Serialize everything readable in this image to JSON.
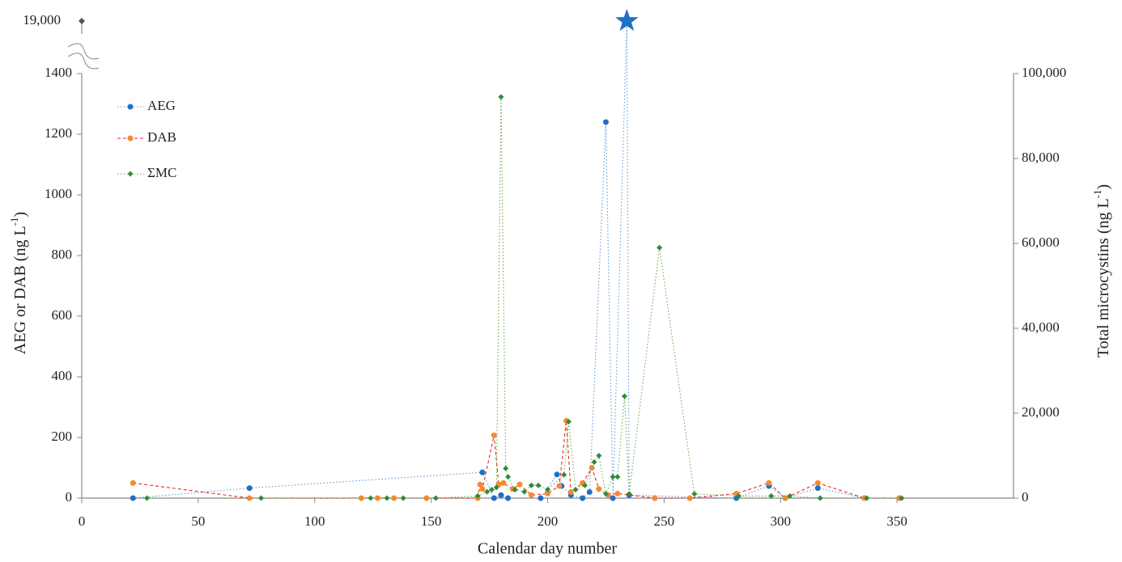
{
  "chart_data": {
    "type": "line",
    "xlabel": "Calendar day number",
    "ylabel": [
      "AEG or DAB (ng L",
      "-1",
      ")"
    ],
    "y2label": [
      "Total microcystins (ng L",
      "-1",
      ")"
    ],
    "xlim": [
      0,
      400
    ],
    "xticks": [
      0,
      50,
      100,
      150,
      200,
      250,
      300,
      350
    ],
    "ylim": [
      0,
      1400
    ],
    "yticks": [
      0,
      200,
      400,
      600,
      800,
      1000,
      1200,
      1400
    ],
    "ybreak_tick": {
      "value": 19000,
      "label": "19,000"
    },
    "y2lim": [
      0,
      100000
    ],
    "y2ticks": [
      0,
      {
        "value": 20000,
        "label": "20,000"
      },
      {
        "value": 40000,
        "label": "40,000"
      },
      {
        "value": 60000,
        "label": "60,000"
      },
      {
        "value": 80000,
        "label": "80,000"
      },
      {
        "value": 100000,
        "label": "100,000"
      }
    ],
    "grid": false,
    "legend": "top-left",
    "series": [
      {
        "name": "AEG",
        "color": "#5b9bd5",
        "marker_color": "#1f6fc5",
        "marker": "circle",
        "dash": "dotted",
        "x": [
          22,
          72,
          172,
          177,
          180,
          183,
          197,
          204,
          206,
          210,
          215,
          218,
          225,
          228,
          234,
          235,
          281,
          295,
          302,
          316,
          336,
          351
        ],
        "values": [
          0,
          33,
          85,
          0,
          10,
          0,
          0,
          78,
          40,
          10,
          0,
          20,
          1240,
          0,
          19000,
          10,
          0,
          40,
          0,
          33,
          0,
          0
        ]
      },
      {
        "name": "DAB",
        "color": "#e8281e",
        "marker_color": "#f58a2f",
        "marker": "circle",
        "dash": "dashed",
        "x": [
          22,
          72,
          120,
          127,
          134,
          148,
          170,
          171,
          172,
          177,
          179,
          181,
          185,
          188,
          193,
          200,
          205,
          208,
          210,
          215,
          219,
          222,
          226,
          230,
          246,
          261,
          281,
          295,
          302,
          316,
          336,
          351
        ],
        "values": [
          50,
          0,
          0,
          0,
          0,
          0,
          0,
          45,
          30,
          207,
          45,
          50,
          30,
          45,
          10,
          15,
          40,
          255,
          20,
          50,
          100,
          30,
          10,
          15,
          0,
          0,
          15,
          50,
          0,
          50,
          0,
          0
        ]
      },
      {
        "name": "ΣMC",
        "color": "#6aaa4a",
        "marker_color": "#2e8b3a",
        "marker": "diamond",
        "dash": "dotted",
        "axis": "y2",
        "x": [
          28,
          77,
          124,
          131,
          138,
          152,
          170,
          174,
          176,
          178,
          180,
          182,
          183,
          186,
          190,
          193,
          196,
          200,
          207,
          209,
          212,
          216,
          220,
          222,
          225,
          228,
          230,
          233,
          235,
          248,
          263,
          282,
          296,
          304,
          317,
          337,
          352
        ],
        "values": [
          0,
          0,
          0,
          0,
          0,
          0,
          500,
          1500,
          2000,
          2500,
          94500,
          7000,
          5000,
          2000,
          1500,
          3000,
          3000,
          2000,
          5500,
          18000,
          2000,
          3000,
          8500,
          10000,
          1000,
          5000,
          5000,
          24000,
          1000,
          59000,
          1000,
          500,
          500,
          500,
          0,
          0,
          0
        ]
      }
    ]
  }
}
